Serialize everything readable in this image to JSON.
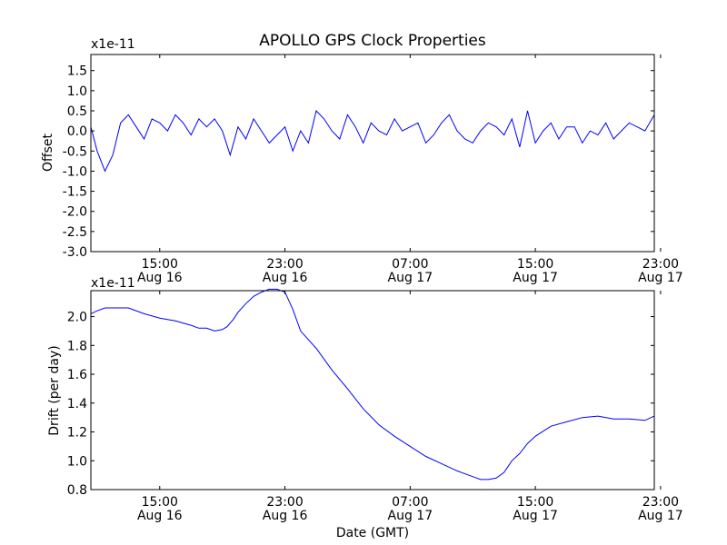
{
  "figure_title": "APOLLO GPS Clock Properties",
  "xlabel": "Date (GMT)",
  "colors": {
    "line_top": "#0000ff",
    "line_bottom": "#0000ff",
    "axes": "#000000"
  },
  "chart_data": [
    {
      "type": "line",
      "title": "APOLLO GPS Clock Properties",
      "ylabel": "Offset",
      "multiplier_label": "x1e-11",
      "ylim": [
        -3.0,
        1.9
      ],
      "yticks": [
        -3.0,
        -2.5,
        -2.0,
        -1.5,
        -1.0,
        -0.5,
        0.0,
        0.5,
        1.0,
        1.5
      ],
      "ytick_labels": [
        "-3.0",
        "-2.5",
        "-2.0",
        "-1.5",
        "-1.0",
        "-0.5",
        "0.0",
        "0.5",
        "1.0",
        "1.5"
      ],
      "xlim_hours": [
        10.6,
        46.6
      ],
      "xticks_hours": [
        15,
        23,
        31,
        39,
        47
      ],
      "xtick_labels": [
        [
          "15:00",
          "Aug 16"
        ],
        [
          "23:00",
          "Aug 16"
        ],
        [
          "07:00",
          "Aug 17"
        ],
        [
          "15:00",
          "Aug 17"
        ],
        [
          "23:00",
          "Aug 17"
        ]
      ],
      "series": [
        {
          "name": "Offset",
          "x_hours": [
            10.6,
            11.0,
            11.5,
            12.0,
            12.5,
            13.0,
            13.5,
            14.0,
            14.5,
            15.0,
            15.5,
            16.0,
            16.5,
            17.0,
            17.5,
            18.0,
            18.5,
            19.0,
            19.5,
            20.0,
            20.5,
            21.0,
            21.5,
            22.0,
            22.5,
            23.0,
            23.5,
            24.0,
            24.5,
            25.0,
            25.5,
            26.0,
            26.5,
            27.0,
            27.5,
            28.0,
            28.5,
            29.0,
            29.5,
            30.0,
            30.5,
            31.0,
            31.5,
            32.0,
            32.5,
            33.0,
            33.5,
            34.0,
            34.5,
            35.0,
            35.5,
            36.0,
            36.5,
            37.0,
            37.5,
            38.0,
            38.5,
            39.0,
            39.5,
            40.0,
            40.5,
            41.0,
            41.5,
            42.0,
            42.5,
            43.0,
            43.5,
            44.0,
            44.5,
            45.0,
            45.5,
            46.0,
            46.6
          ],
          "values": [
            0.1,
            -0.5,
            -1.0,
            -0.6,
            0.2,
            0.4,
            0.1,
            -0.2,
            0.3,
            0.2,
            0.0,
            0.4,
            0.2,
            -0.1,
            0.3,
            0.1,
            0.3,
            0.0,
            -0.6,
            0.1,
            -0.2,
            0.3,
            0.0,
            -0.3,
            -0.1,
            0.1,
            -0.5,
            0.0,
            -0.3,
            0.5,
            0.3,
            0.0,
            -0.2,
            0.4,
            0.1,
            -0.3,
            0.2,
            0.0,
            -0.1,
            0.3,
            0.0,
            0.1,
            0.2,
            -0.3,
            -0.1,
            0.2,
            0.4,
            0.0,
            -0.2,
            -0.3,
            0.0,
            0.2,
            0.1,
            -0.1,
            0.3,
            -0.4,
            0.5,
            -0.3,
            0.0,
            0.2,
            -0.2,
            0.1,
            0.1,
            -0.3,
            0.0,
            -0.1,
            0.2,
            -0.2,
            0.0,
            0.2,
            0.1,
            0.0,
            0.4
          ]
        }
      ]
    },
    {
      "type": "line",
      "ylabel": "Drift (per day)",
      "multiplier_label": "x1e-11",
      "ylim": [
        0.8,
        2.18
      ],
      "yticks": [
        0.8,
        1.0,
        1.2,
        1.4,
        1.6,
        1.8,
        2.0
      ],
      "ytick_labels": [
        "0.8",
        "1.0",
        "1.2",
        "1.4",
        "1.6",
        "1.8",
        "2.0"
      ],
      "xlim_hours": [
        10.6,
        46.6
      ],
      "xticks_hours": [
        15,
        23,
        31,
        39,
        47
      ],
      "xtick_labels": [
        [
          "15:00",
          "Aug 16"
        ],
        [
          "23:00",
          "Aug 16"
        ],
        [
          "07:00",
          "Aug 17"
        ],
        [
          "15:00",
          "Aug 17"
        ],
        [
          "23:00",
          "Aug 17"
        ]
      ],
      "series": [
        {
          "name": "Drift",
          "x_hours": [
            10.6,
            11.0,
            11.5,
            12.0,
            13.0,
            14.0,
            15.0,
            16.0,
            17.0,
            17.5,
            18.0,
            18.5,
            19.0,
            19.3,
            19.7,
            20.0,
            20.5,
            21.0,
            21.5,
            22.0,
            22.5,
            23.0,
            23.5,
            24.0,
            25.0,
            26.0,
            27.0,
            28.0,
            29.0,
            30.0,
            31.0,
            32.0,
            33.0,
            34.0,
            35.0,
            35.5,
            36.0,
            36.5,
            37.0,
            37.5,
            38.0,
            38.5,
            39.0,
            40.0,
            41.0,
            42.0,
            43.0,
            44.0,
            45.0,
            46.0,
            46.6
          ],
          "values": [
            2.02,
            2.04,
            2.06,
            2.06,
            2.06,
            2.02,
            1.99,
            1.97,
            1.94,
            1.92,
            1.92,
            1.9,
            1.91,
            1.93,
            1.98,
            2.03,
            2.09,
            2.14,
            2.17,
            2.19,
            2.19,
            2.17,
            2.05,
            1.9,
            1.78,
            1.63,
            1.5,
            1.36,
            1.25,
            1.17,
            1.1,
            1.03,
            0.98,
            0.93,
            0.89,
            0.87,
            0.87,
            0.88,
            0.92,
            1.0,
            1.05,
            1.12,
            1.17,
            1.24,
            1.27,
            1.3,
            1.31,
            1.29,
            1.29,
            1.28,
            1.31
          ]
        }
      ]
    }
  ]
}
